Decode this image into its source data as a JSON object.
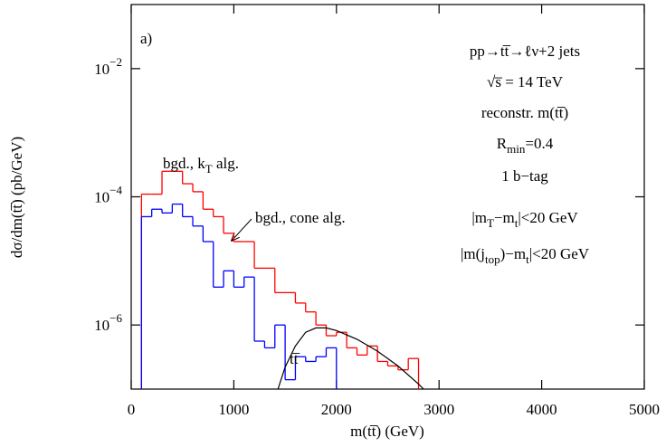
{
  "chart_data": {
    "type": "line",
    "xlabel": "m(tt̅)  (GeV)",
    "ylabel": "dσ/dm(tt̅)  (pb/GeV)",
    "xlim": [
      0,
      5000
    ],
    "xticks": [
      0,
      1000,
      2000,
      3000,
      4000,
      5000
    ],
    "ylim": [
      1e-07,
      0.1
    ],
    "log_y": true,
    "yticks": [
      {
        "value": 0.01,
        "label": "10−2"
      },
      {
        "value": 0.0001,
        "label": "10−4"
      },
      {
        "value": 1e-06,
        "label": "10−6"
      }
    ],
    "series": [
      {
        "kind": "step",
        "color": "#ff0000",
        "bins": [
          100,
          200,
          300,
          400,
          500,
          600,
          700,
          800,
          900,
          1000,
          1100,
          1200,
          1300,
          1400,
          1500,
          1600,
          1700,
          1800,
          1900,
          2000,
          2100,
          2200,
          2300,
          2400,
          2500,
          2600,
          2700,
          2800
        ],
        "values": [
          0.00011,
          0.00011,
          0.00025,
          0.00025,
          0.00016,
          0.00012,
          6.4e-05,
          4.9e-05,
          2.7e-05,
          2e-05,
          2e-05,
          7.7e-06,
          7.7e-06,
          3.2e-06,
          3.2e-06,
          2.2e-06,
          1.6e-06,
          1e-06,
          6.8e-07,
          7.7e-07,
          4.4e-07,
          3.4e-07,
          4.7e-07,
          2.7e-07,
          2.3e-07,
          2e-07,
          3e-07
        ]
      },
      {
        "kind": "step",
        "color": "#0000ff",
        "bins": [
          100,
          200,
          300,
          400,
          500,
          600,
          700,
          800,
          900,
          1000,
          1100,
          1200,
          1300,
          1400,
          1500,
          1600,
          1700,
          1800,
          1900,
          2000
        ],
        "values": [
          4.9e-05,
          6.4e-05,
          5.6e-05,
          7.7e-05,
          4.9e-05,
          3.5e-05,
          2e-05,
          3.9e-06,
          7e-06,
          3.9e-06,
          5.6e-06,
          5.6e-07,
          4.4e-07,
          1e-06,
          1.4e-07,
          3.2e-07,
          2.7e-07,
          3.2e-07,
          4.4e-07
        ]
      },
      {
        "kind": "curve",
        "color": "#000000",
        "x": [
          1430,
          1500,
          1600,
          1700,
          1800,
          1900,
          2000,
          2200,
          2400,
          2600,
          2800,
          2850
        ],
        "values": [
          1e-07,
          2.2e-07,
          4.7e-07,
          7.7e-07,
          9e-07,
          9e-07,
          8.2e-07,
          6e-07,
          3.9e-07,
          2.3e-07,
          1.2e-07,
          1e-07
        ]
      }
    ],
    "annotations": [
      {
        "parts": [
          {
            "text": "a)"
          }
        ]
      },
      {
        "parts": [
          {
            "text": "pp→tt̅→ℓν+2 jets"
          }
        ]
      },
      {
        "parts": [
          {
            "text": "√s̅ = 14 TeV"
          }
        ]
      },
      {
        "parts": [
          {
            "text": "reconstr. m(tt̅)"
          }
        ]
      },
      {
        "parts": [
          {
            "text": "R"
          },
          {
            "text": "min",
            "sub": true
          },
          {
            "text": "=0.4"
          }
        ]
      },
      {
        "parts": [
          {
            "text": "1 b−tag"
          }
        ]
      },
      {
        "parts": [
          {
            "text": "|m"
          },
          {
            "text": "T",
            "sub": true
          },
          {
            "text": "−m"
          },
          {
            "text": "t",
            "sub": true
          },
          {
            "text": "|<20 GeV"
          }
        ]
      },
      {
        "parts": [
          {
            "text": "|m(j"
          },
          {
            "text": "top",
            "sub": true
          },
          {
            "text": ")−m"
          },
          {
            "text": "t",
            "sub": true
          },
          {
            "text": "|<20 GeV"
          }
        ]
      },
      {
        "parts": [
          {
            "text": "bgd., k"
          },
          {
            "text": "T",
            "sub": true
          },
          {
            "text": " alg."
          }
        ]
      },
      {
        "parts": [
          {
            "text": "bgd., cone alg."
          }
        ]
      },
      {
        "parts": [
          {
            "text": "tt̅"
          }
        ]
      }
    ]
  }
}
